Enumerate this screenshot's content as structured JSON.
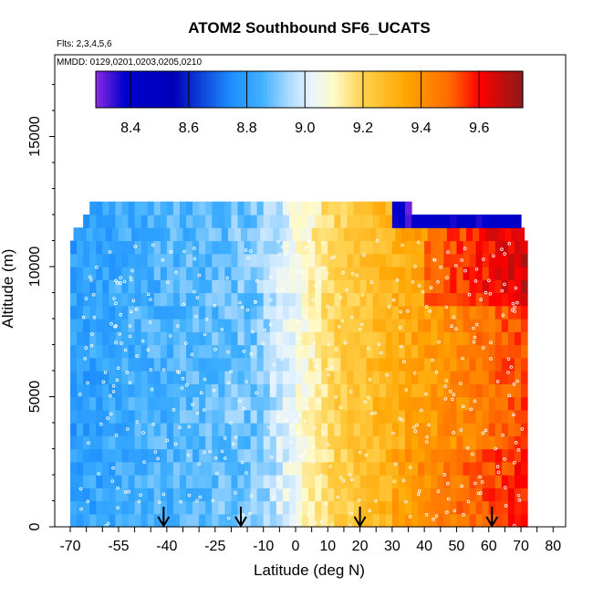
{
  "chart_data": {
    "type": "heatmap",
    "title": "ATOM2 Southbound SF6_UCATS",
    "subtitle_lines": [
      "Flts: 2,3,4,5,6",
      "MMDD: 0129,0201,0203,0205,0210"
    ],
    "xlabel": "Latitude (deg N)",
    "ylabel": "Altitude (m)",
    "xlim": [
      -70,
      80
    ],
    "ylim": [
      0,
      17500
    ],
    "x_tick_labels": [
      "-70",
      "-55",
      "-40",
      "-25",
      "-10",
      "0",
      "10",
      "20",
      "30",
      "40",
      "50",
      "60",
      "70",
      "80"
    ],
    "x_tick_values": [
      -70,
      -55,
      -40,
      -25,
      -10,
      0,
      10,
      20,
      30,
      40,
      50,
      60,
      70,
      80
    ],
    "y_tick_labels": [
      "0",
      "5000",
      "10000",
      "15000"
    ],
    "y_tick_values": [
      0,
      5000,
      10000,
      15000
    ],
    "colorbar": {
      "range": [
        8.28,
        9.75
      ],
      "tick_labels": [
        "8.4",
        "8.6",
        "8.8",
        "9.0",
        "9.2",
        "9.4",
        "9.6"
      ],
      "tick_values": [
        8.4,
        8.6,
        8.8,
        9.0,
        9.2,
        9.4,
        9.6
      ],
      "stops": [
        {
          "v": 8.28,
          "c": "#8a2be2"
        },
        {
          "v": 8.38,
          "c": "#0000cd"
        },
        {
          "v": 8.55,
          "c": "#0000b8"
        },
        {
          "v": 8.75,
          "c": "#1e90ff"
        },
        {
          "v": 8.85,
          "c": "#3fb0ff"
        },
        {
          "v": 8.95,
          "c": "#b0dcff"
        },
        {
          "v": 9.02,
          "c": "#e8f4ff"
        },
        {
          "v": 9.1,
          "c": "#fffac8"
        },
        {
          "v": 9.2,
          "c": "#ffd24d"
        },
        {
          "v": 9.35,
          "c": "#ffa500"
        },
        {
          "v": 9.5,
          "c": "#ff6a00"
        },
        {
          "v": 9.6,
          "c": "#ff0000"
        },
        {
          "v": 9.75,
          "c": "#8b1a1a"
        }
      ]
    },
    "data_extent": {
      "lat": [
        -68,
        72
      ],
      "alt": [
        0,
        12400
      ]
    },
    "arrow_latitudes": [
      -41,
      -17,
      20,
      61
    ],
    "grid": false
  }
}
